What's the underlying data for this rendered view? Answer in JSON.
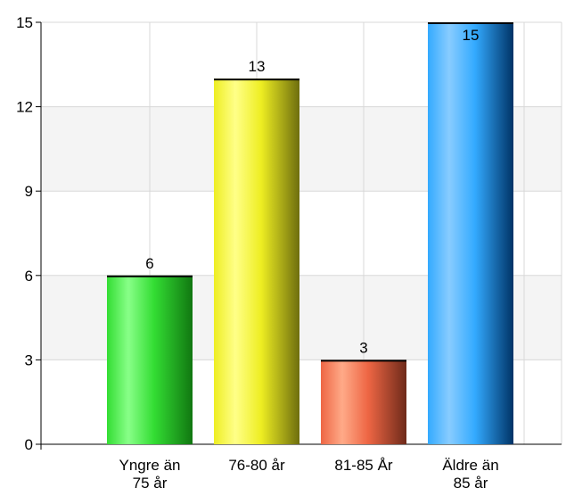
{
  "chart_data": {
    "type": "bar",
    "title": "",
    "xlabel": "",
    "ylabel": "",
    "categories": [
      [
        "Yngre än",
        "75 år"
      ],
      [
        "76-80 år"
      ],
      [
        "81-85 År"
      ],
      [
        "Äldre än",
        "85 år"
      ]
    ],
    "values": [
      6,
      13,
      3,
      15
    ],
    "ylim": [
      0,
      15
    ],
    "yticks": [
      0,
      3,
      6,
      9,
      12,
      15
    ],
    "grid": true,
    "legend": "none",
    "bar_colors": [
      {
        "light": "#88ff88",
        "mid": "#33dd33",
        "dark": "#117711"
      },
      {
        "light": "#ffff88",
        "mid": "#eeee22",
        "dark": "#6e6e0e"
      },
      {
        "light": "#ffaa88",
        "mid": "#ee6644",
        "dark": "#6e2a1a"
      },
      {
        "light": "#88ccff",
        "mid": "#33aaff",
        "dark": "#003366"
      }
    ],
    "band_color": "#f4f4f4",
    "grid_color": "#d8d8d8"
  }
}
